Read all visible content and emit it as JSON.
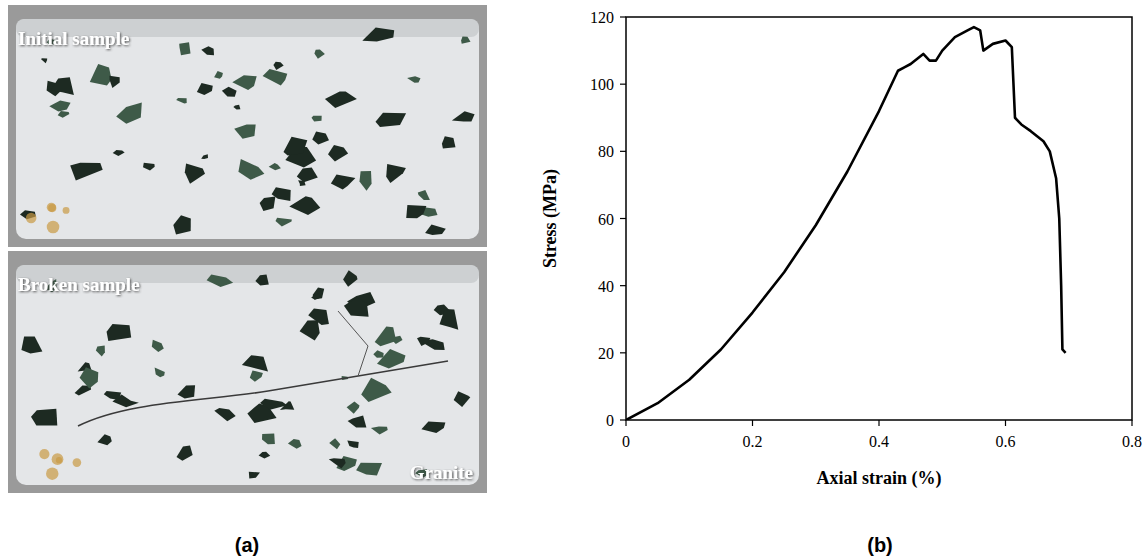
{
  "panel_a": {
    "label": "(a)",
    "photos": [
      {
        "caption": "Initial sample"
      },
      {
        "caption": "Broken sample",
        "material": "Granite"
      }
    ]
  },
  "chart_data": {
    "type": "line",
    "panel_label": "(b)",
    "x_label": "Axial strain (%)",
    "y_label": "Stress (MPa)",
    "x": [
      0,
      0.05,
      0.1,
      0.15,
      0.2,
      0.25,
      0.3,
      0.35,
      0.4,
      0.43,
      0.44,
      0.45,
      0.47,
      0.48,
      0.49,
      0.5,
      0.52,
      0.54,
      0.55,
      0.56,
      0.565,
      0.58,
      0.6,
      0.61,
      0.615,
      0.625,
      0.64,
      0.66,
      0.67,
      0.68,
      0.685,
      0.688,
      0.69,
      0.695
    ],
    "values": [
      0,
      5,
      12,
      21,
      32,
      44,
      58,
      74,
      92,
      104,
      105,
      106,
      109,
      107,
      107,
      110,
      114,
      116,
      117,
      116,
      110,
      112,
      113,
      111,
      90,
      88,
      86,
      83,
      80,
      72,
      60,
      40,
      21,
      20
    ],
    "color": "#000000",
    "xlim": [
      0,
      0.8
    ],
    "xticks": [
      0,
      0.2,
      0.4,
      0.6,
      0.8
    ],
    "ylim": [
      0,
      120
    ],
    "yticks": [
      0,
      20,
      40,
      60,
      80,
      100,
      120
    ],
    "grid": false
  }
}
